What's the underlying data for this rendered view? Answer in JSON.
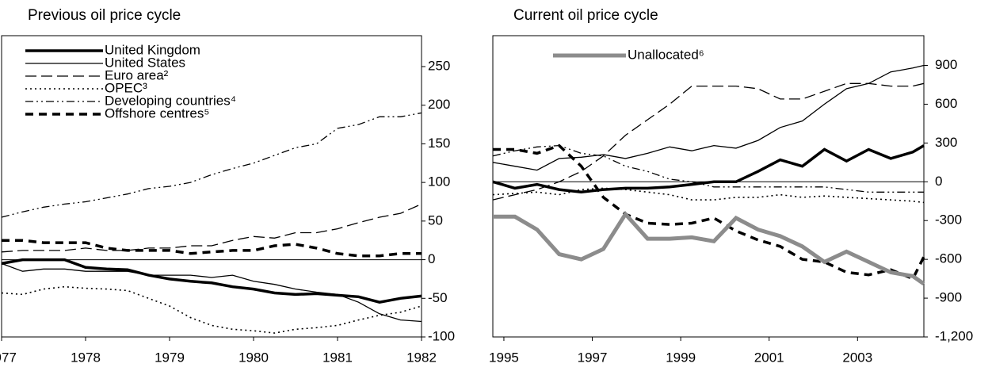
{
  "chart_data": [
    {
      "type": "line",
      "title": "Previous oil price cycle",
      "x": [
        1977,
        1977.25,
        1977.5,
        1977.75,
        1978,
        1978.25,
        1978.5,
        1978.75,
        1979,
        1979.25,
        1979.5,
        1979.75,
        1980,
        1980.25,
        1980.5,
        1980.75,
        1981,
        1981.25,
        1981.5,
        1981.75,
        1982
      ],
      "xlim": [
        1977,
        1982
      ],
      "xticks": [
        1977,
        1978,
        1979,
        1980,
        1981,
        1982
      ],
      "ylim": [
        -100,
        290
      ],
      "yticks": [
        250,
        200,
        150,
        100,
        50,
        0,
        -50,
        -100
      ],
      "series": [
        {
          "name": "United Kingdom",
          "color": "#000000",
          "style": "solid",
          "width": 3.5,
          "values": [
            -5,
            0,
            0,
            0,
            -10,
            -12,
            -13,
            -20,
            -25,
            -28,
            -30,
            -35,
            -38,
            -43,
            -45,
            -44,
            -46,
            -48,
            -55,
            -50,
            -47
          ]
        },
        {
          "name": "United States",
          "color": "#000000",
          "style": "solid",
          "width": 1.3,
          "values": [
            -5,
            -15,
            -12,
            -12,
            -15,
            -15,
            -15,
            -20,
            -20,
            -20,
            -23,
            -20,
            -28,
            -32,
            -38,
            -42,
            -45,
            -55,
            -70,
            -78,
            -80
          ]
        },
        {
          "name": "Euro area²",
          "color": "#000000",
          "style": "dashed",
          "width": 1.3,
          "values": [
            10,
            12,
            12,
            12,
            15,
            12,
            12,
            15,
            15,
            18,
            18,
            25,
            30,
            28,
            35,
            35,
            40,
            48,
            55,
            60,
            72
          ]
        },
        {
          "name": "OPEC³",
          "color": "#000000",
          "style": "dotted",
          "width": 1.6,
          "values": [
            -43,
            -45,
            -38,
            -35,
            -37,
            -38,
            -40,
            -50,
            -60,
            -75,
            -85,
            -90,
            -92,
            -95,
            -90,
            -88,
            -85,
            -78,
            -72,
            -68,
            -60
          ]
        },
        {
          "name": "Developing countries⁴",
          "color": "#000000",
          "style": "dashdot",
          "width": 1.3,
          "values": [
            55,
            62,
            68,
            72,
            75,
            80,
            85,
            92,
            95,
            100,
            110,
            118,
            125,
            135,
            145,
            150,
            170,
            175,
            185,
            185,
            190
          ]
        },
        {
          "name": "Offshore centres⁵",
          "color": "#000000",
          "style": "thickdash",
          "width": 3.5,
          "values": [
            25,
            25,
            22,
            22,
            22,
            15,
            12,
            12,
            12,
            8,
            10,
            12,
            12,
            18,
            20,
            15,
            8,
            5,
            5,
            8,
            8
          ]
        }
      ]
    },
    {
      "type": "line",
      "title": "Current oil price cycle",
      "x": [
        1994.75,
        1995.25,
        1995.75,
        1996.25,
        1996.75,
        1997.25,
        1997.75,
        1998.25,
        1998.75,
        1999.25,
        1999.75,
        2000.25,
        2000.75,
        2001.25,
        2001.75,
        2002.25,
        2002.75,
        2003.25,
        2003.75,
        2004.25,
        2004.5
      ],
      "xlim": [
        1994.75,
        2004.5
      ],
      "xticks": [
        1995,
        1997,
        1999,
        2001,
        2003
      ],
      "ylim": [
        -1200,
        1130
      ],
      "yticks": [
        900,
        600,
        300,
        0,
        -300,
        -600,
        -900,
        {
          "value": -1200,
          "label": "-1,200"
        }
      ],
      "series": [
        {
          "name": "United Kingdom",
          "color": "#000000",
          "style": "solid",
          "width": 3.5,
          "values": [
            0,
            -50,
            -20,
            -60,
            -80,
            -60,
            -50,
            -50,
            -40,
            -20,
            0,
            0,
            80,
            170,
            120,
            250,
            160,
            250,
            180,
            230,
            280
          ]
        },
        {
          "name": "United States",
          "color": "#000000",
          "style": "solid",
          "width": 1.3,
          "values": [
            150,
            120,
            90,
            180,
            190,
            210,
            180,
            220,
            270,
            240,
            280,
            260,
            320,
            420,
            470,
            600,
            720,
            760,
            850,
            880,
            900
          ]
        },
        {
          "name": "Euro area²",
          "color": "#000000",
          "style": "dashed",
          "width": 1.3,
          "values": [
            -140,
            -100,
            -60,
            0,
            80,
            200,
            360,
            480,
            600,
            740,
            740,
            740,
            720,
            640,
            640,
            700,
            760,
            760,
            740,
            740,
            760
          ]
        },
        {
          "name": "OPEC³",
          "color": "#000000",
          "style": "dotted",
          "width": 1.6,
          "values": [
            -100,
            -90,
            -80,
            -100,
            -60,
            -50,
            -60,
            -80,
            -100,
            -140,
            -140,
            -120,
            -120,
            -100,
            -120,
            -110,
            -120,
            -130,
            -140,
            -150,
            -160
          ]
        },
        {
          "name": "Developing countries⁴",
          "color": "#000000",
          "style": "dashdot",
          "width": 1.3,
          "values": [
            200,
            240,
            270,
            280,
            220,
            200,
            120,
            80,
            20,
            0,
            -40,
            -40,
            -40,
            -40,
            -40,
            -40,
            -60,
            -80,
            -80,
            -80,
            -80
          ]
        },
        {
          "name": "Offshore centres⁵",
          "color": "#000000",
          "style": "thickdash",
          "width": 3.5,
          "values": [
            250,
            250,
            220,
            280,
            120,
            -120,
            -250,
            -320,
            -330,
            -320,
            -280,
            -380,
            -450,
            -500,
            -600,
            -620,
            -700,
            -720,
            -680,
            -750,
            -580
          ]
        },
        {
          "name": "Unallocated⁶",
          "color": "#8c8c8c",
          "style": "solid",
          "width": 5,
          "legend": true,
          "values": [
            -270,
            -270,
            -370,
            -560,
            -600,
            -520,
            -250,
            -440,
            -440,
            -430,
            -460,
            -280,
            -370,
            -420,
            -500,
            -620,
            -540,
            -620,
            -700,
            -730,
            -790
          ]
        }
      ]
    }
  ]
}
